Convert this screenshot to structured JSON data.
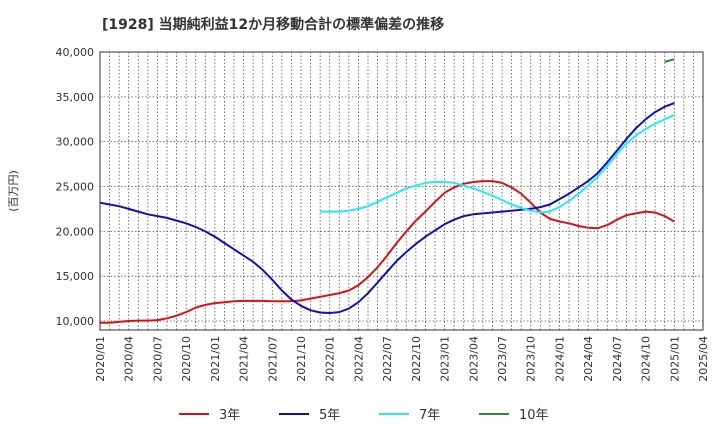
{
  "chart_data": {
    "type": "line",
    "title": "[1928]  当期純利益12か月移動合計の標準偏差の推移",
    "ylabel": "(百万円)",
    "xlabel": "",
    "ylim": [
      9000,
      40000
    ],
    "grid": true,
    "legend_position": "bottom",
    "yticks": [
      {
        "value": 10000,
        "label": "10,000"
      },
      {
        "value": 15000,
        "label": "15,000"
      },
      {
        "value": 20000,
        "label": "20,000"
      },
      {
        "value": 25000,
        "label": "25,000"
      },
      {
        "value": 30000,
        "label": "30,000"
      },
      {
        "value": 35000,
        "label": "35,000"
      },
      {
        "value": 40000,
        "label": "40,000"
      }
    ],
    "xticks": [
      "2020/01",
      "2020/04",
      "2020/07",
      "2020/10",
      "2021/01",
      "2021/04",
      "2021/07",
      "2021/10",
      "2022/01",
      "2022/04",
      "2022/07",
      "2022/10",
      "2023/01",
      "2023/04",
      "2023/07",
      "2023/10",
      "2024/01",
      "2024/04",
      "2024/07",
      "2024/10",
      "2025/01",
      "2025/04"
    ],
    "series": [
      {
        "name": "3年",
        "color": "#dd1111",
        "points": [
          [
            "2020/01",
            9800
          ],
          [
            "2020/02",
            9800
          ],
          [
            "2020/03",
            9900
          ],
          [
            "2020/04",
            10000
          ],
          [
            "2020/05",
            10050
          ],
          [
            "2020/06",
            10050
          ],
          [
            "2020/07",
            10100
          ],
          [
            "2020/08",
            10300
          ],
          [
            "2020/09",
            10600
          ],
          [
            "2020/10",
            11000
          ],
          [
            "2020/11",
            11500
          ],
          [
            "2020/12",
            11800
          ],
          [
            "2021/01",
            12000
          ],
          [
            "2021/02",
            12100
          ],
          [
            "2021/03",
            12200
          ],
          [
            "2021/04",
            12250
          ],
          [
            "2021/05",
            12250
          ],
          [
            "2021/06",
            12250
          ],
          [
            "2021/07",
            12200
          ],
          [
            "2021/08",
            12200
          ],
          [
            "2021/09",
            12200
          ],
          [
            "2021/10",
            12300
          ],
          [
            "2021/11",
            12500
          ],
          [
            "2021/12",
            12700
          ],
          [
            "2022/01",
            12900
          ],
          [
            "2022/02",
            13100
          ],
          [
            "2022/03",
            13400
          ],
          [
            "2022/04",
            14000
          ],
          [
            "2022/05",
            14900
          ],
          [
            "2022/06",
            16000
          ],
          [
            "2022/07",
            17300
          ],
          [
            "2022/08",
            18700
          ],
          [
            "2022/09",
            20000
          ],
          [
            "2022/10",
            21200
          ],
          [
            "2022/11",
            22200
          ],
          [
            "2022/12",
            23300
          ],
          [
            "2023/01",
            24300
          ],
          [
            "2023/02",
            24900
          ],
          [
            "2023/03",
            25300
          ],
          [
            "2023/04",
            25500
          ],
          [
            "2023/05",
            25600
          ],
          [
            "2023/06",
            25600
          ],
          [
            "2023/07",
            25400
          ],
          [
            "2023/08",
            24900
          ],
          [
            "2023/09",
            24200
          ],
          [
            "2023/10",
            23200
          ],
          [
            "2023/11",
            22100
          ],
          [
            "2023/12",
            21400
          ],
          [
            "2024/01",
            21100
          ],
          [
            "2024/02",
            20900
          ],
          [
            "2024/03",
            20600
          ],
          [
            "2024/04",
            20400
          ],
          [
            "2024/05",
            20350
          ],
          [
            "2024/06",
            20700
          ],
          [
            "2024/07",
            21300
          ],
          [
            "2024/08",
            21800
          ],
          [
            "2024/09",
            22000
          ],
          [
            "2024/10",
            22200
          ],
          [
            "2024/11",
            22100
          ],
          [
            "2024/12",
            21700
          ],
          [
            "2025/01",
            21100
          ]
        ]
      },
      {
        "name": "5年",
        "color": "#1111bb",
        "points": [
          [
            "2020/01",
            23200
          ],
          [
            "2020/02",
            23000
          ],
          [
            "2020/03",
            22800
          ],
          [
            "2020/04",
            22500
          ],
          [
            "2020/05",
            22200
          ],
          [
            "2020/06",
            21900
          ],
          [
            "2020/07",
            21700
          ],
          [
            "2020/08",
            21500
          ],
          [
            "2020/09",
            21200
          ],
          [
            "2020/10",
            20900
          ],
          [
            "2020/11",
            20500
          ],
          [
            "2020/12",
            20000
          ],
          [
            "2021/01",
            19400
          ],
          [
            "2021/02",
            18700
          ],
          [
            "2021/03",
            18000
          ],
          [
            "2021/04",
            17300
          ],
          [
            "2021/05",
            16600
          ],
          [
            "2021/06",
            15700
          ],
          [
            "2021/07",
            14600
          ],
          [
            "2021/08",
            13400
          ],
          [
            "2021/09",
            12400
          ],
          [
            "2021/10",
            11700
          ],
          [
            "2021/11",
            11200
          ],
          [
            "2021/12",
            10950
          ],
          [
            "2022/01",
            10900
          ],
          [
            "2022/02",
            11000
          ],
          [
            "2022/03",
            11400
          ],
          [
            "2022/04",
            12100
          ],
          [
            "2022/05",
            13100
          ],
          [
            "2022/06",
            14300
          ],
          [
            "2022/07",
            15500
          ],
          [
            "2022/08",
            16700
          ],
          [
            "2022/09",
            17700
          ],
          [
            "2022/10",
            18600
          ],
          [
            "2022/11",
            19400
          ],
          [
            "2022/12",
            20100
          ],
          [
            "2023/01",
            20800
          ],
          [
            "2023/02",
            21300
          ],
          [
            "2023/03",
            21700
          ],
          [
            "2023/04",
            21900
          ],
          [
            "2023/05",
            22000
          ],
          [
            "2023/06",
            22100
          ],
          [
            "2023/07",
            22200
          ],
          [
            "2023/08",
            22300
          ],
          [
            "2023/09",
            22400
          ],
          [
            "2023/10",
            22500
          ],
          [
            "2023/11",
            22700
          ],
          [
            "2023/12",
            23000
          ],
          [
            "2024/01",
            23600
          ],
          [
            "2024/02",
            24200
          ],
          [
            "2024/03",
            24900
          ],
          [
            "2024/04",
            25600
          ],
          [
            "2024/05",
            26500
          ],
          [
            "2024/06",
            27700
          ],
          [
            "2024/07",
            29000
          ],
          [
            "2024/08",
            30300
          ],
          [
            "2024/09",
            31500
          ],
          [
            "2024/10",
            32500
          ],
          [
            "2024/11",
            33300
          ],
          [
            "2024/12",
            33900
          ],
          [
            "2025/01",
            34300
          ]
        ]
      },
      {
        "name": "7年",
        "color": "#22eeee",
        "points": [
          [
            "2021/12",
            22200
          ],
          [
            "2022/01",
            22200
          ],
          [
            "2022/02",
            22200
          ],
          [
            "2022/03",
            22300
          ],
          [
            "2022/04",
            22500
          ],
          [
            "2022/05",
            22800
          ],
          [
            "2022/06",
            23300
          ],
          [
            "2022/07",
            23800
          ],
          [
            "2022/08",
            24300
          ],
          [
            "2022/09",
            24800
          ],
          [
            "2022/10",
            25100
          ],
          [
            "2022/11",
            25400
          ],
          [
            "2022/12",
            25500
          ],
          [
            "2023/01",
            25500
          ],
          [
            "2023/02",
            25400
          ],
          [
            "2023/03",
            25100
          ],
          [
            "2023/04",
            24800
          ],
          [
            "2023/05",
            24400
          ],
          [
            "2023/06",
            24000
          ],
          [
            "2023/07",
            23500
          ],
          [
            "2023/08",
            23000
          ],
          [
            "2023/09",
            22600
          ],
          [
            "2023/10",
            22300
          ],
          [
            "2023/11",
            22100
          ],
          [
            "2023/12",
            22200
          ],
          [
            "2024/01",
            22700
          ],
          [
            "2024/02",
            23400
          ],
          [
            "2024/03",
            24200
          ],
          [
            "2024/04",
            25100
          ],
          [
            "2024/05",
            26100
          ],
          [
            "2024/06",
            27300
          ],
          [
            "2024/07",
            28600
          ],
          [
            "2024/08",
            29800
          ],
          [
            "2024/09",
            30700
          ],
          [
            "2024/10",
            31400
          ],
          [
            "2024/11",
            32000
          ],
          [
            "2024/12",
            32500
          ],
          [
            "2025/01",
            33000
          ]
        ]
      },
      {
        "name": "10年",
        "color": "#338833",
        "points": [
          [
            "2024/12",
            38900
          ],
          [
            "2025/01",
            39200
          ]
        ]
      }
    ]
  }
}
